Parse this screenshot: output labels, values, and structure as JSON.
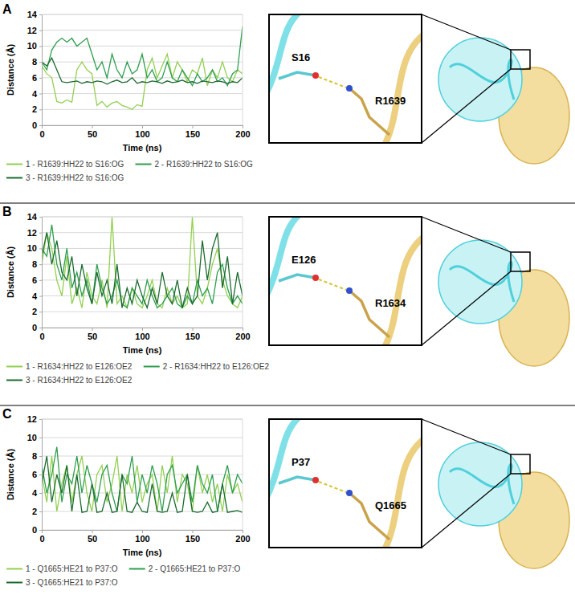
{
  "chart_data": [
    {
      "type": "line",
      "panel_label": "A",
      "annotations": [
        "S16",
        "R1639"
      ],
      "x_label": "Time (ns)",
      "y_label": "Distance (Å)",
      "x": [
        0,
        5,
        10,
        15,
        20,
        25,
        30,
        35,
        40,
        45,
        50,
        55,
        60,
        65,
        70,
        75,
        80,
        85,
        90,
        95,
        100,
        105,
        110,
        115,
        120,
        125,
        130,
        135,
        140,
        145,
        150,
        155,
        160,
        165,
        170,
        175,
        180,
        185,
        190,
        195,
        200
      ],
      "xlim": [
        0,
        200
      ],
      "xticks": [
        0,
        50,
        100,
        150,
        200
      ],
      "ylim": [
        0,
        14
      ],
      "yticks": [
        0,
        2,
        4,
        6,
        8,
        10,
        12,
        14
      ],
      "grid": true,
      "legend": "bottom",
      "series": [
        {
          "name": "1 - R1639:HH22 to S16:OG",
          "color": "#92d050",
          "values": [
            7.5,
            6.5,
            6,
            3,
            2.8,
            3.2,
            2.9,
            7,
            8,
            7,
            6.5,
            2.5,
            3,
            2.3,
            2.8,
            3,
            2.5,
            2.3,
            2,
            2.6,
            2.4,
            7,
            8.5,
            6,
            7.5,
            9,
            6,
            8,
            7,
            5.5,
            7,
            6.5,
            8.5,
            5,
            7,
            6,
            8,
            6,
            5.5,
            7,
            6.5
          ]
        },
        {
          "name": "2 - R1639:HH22 to S16:OG",
          "color": "#2e9e4f",
          "values": [
            8,
            7,
            9.5,
            10.5,
            11,
            10.5,
            11,
            10,
            10.5,
            11,
            9,
            7,
            8,
            6,
            9,
            7,
            6,
            8,
            6.5,
            7,
            9,
            6,
            7,
            5.5,
            6,
            8,
            6,
            5.5,
            7,
            6,
            5,
            6.5,
            5.5,
            6,
            7,
            5.5,
            6,
            5,
            6.5,
            7,
            12.5
          ]
        },
        {
          "name": "3 - R1639:HH22 to S16:OG",
          "color": "#1b6b2f",
          "values": [
            8,
            7.5,
            8.5,
            7,
            5.5,
            5.4,
            5.5,
            5.6,
            5.3,
            5.5,
            5.4,
            5.6,
            5.5,
            5.2,
            5.5,
            5.7,
            5.4,
            5.5,
            6,
            5.3,
            5.5,
            5.4,
            5.6,
            5.5,
            5.3,
            5.6,
            5.4,
            5.5,
            5.7,
            5.4,
            5.5,
            5.3,
            5.6,
            5.5,
            5.4,
            5.6,
            5.5,
            5.3,
            5.5,
            5.4,
            6
          ]
        }
      ]
    },
    {
      "type": "line",
      "panel_label": "B",
      "annotations": [
        "E126",
        "R1634"
      ],
      "x_label": "Time (ns)",
      "y_label": "Distance (Å)",
      "x": [
        0,
        5,
        10,
        15,
        20,
        25,
        30,
        35,
        40,
        45,
        50,
        55,
        60,
        65,
        70,
        75,
        80,
        85,
        90,
        95,
        100,
        105,
        110,
        115,
        120,
        125,
        130,
        135,
        140,
        145,
        150,
        155,
        160,
        165,
        170,
        175,
        180,
        185,
        190,
        195,
        200
      ],
      "xlim": [
        0,
        200
      ],
      "xticks": [
        0,
        50,
        100,
        150,
        200
      ],
      "ylim": [
        0,
        14
      ],
      "yticks": [
        0,
        2,
        4,
        6,
        8,
        10,
        12,
        14
      ],
      "grid": true,
      "legend": "bottom",
      "series": [
        {
          "name": "1 - R1634:HH22 to E126:OE2",
          "color": "#92d050",
          "values": [
            8,
            12,
            10,
            6,
            4,
            9,
            3,
            5,
            2.5,
            7,
            4,
            3,
            6,
            2.5,
            14,
            3,
            4,
            2.5,
            5,
            3,
            2.5,
            4,
            6,
            3,
            2.5,
            5,
            3,
            4,
            2.5,
            3,
            14,
            4,
            3,
            5,
            8,
            10,
            6,
            4,
            3,
            2.5,
            4
          ]
        },
        {
          "name": "2 - R1634:HH22 to E126:OE2",
          "color": "#2e9e4f",
          "values": [
            10,
            9,
            13,
            8,
            6,
            10,
            5,
            7,
            4,
            6,
            3,
            8,
            5,
            3,
            4,
            6,
            3,
            2.5,
            5,
            4,
            3,
            6,
            4,
            2.5,
            3,
            4,
            5,
            3,
            2.5,
            4,
            3,
            6,
            4,
            5,
            3,
            7,
            8,
            5,
            3,
            4,
            3
          ]
        },
        {
          "name": "3 - R1634:HH22 to E126:OE2",
          "color": "#1b6b2f",
          "values": [
            9,
            12,
            8,
            11,
            7,
            6,
            9,
            4,
            8,
            5,
            3,
            7,
            4,
            6,
            3,
            8,
            2.5,
            5,
            3,
            6,
            4,
            2.5,
            5,
            3,
            7,
            4,
            3,
            6,
            2.5,
            5,
            3,
            4,
            11,
            6,
            10,
            12,
            5,
            9,
            3,
            7,
            4
          ]
        }
      ]
    },
    {
      "type": "line",
      "panel_label": "C",
      "annotations": [
        "P37",
        "Q1665"
      ],
      "x_label": "Time (ns)",
      "y_label": "Distance (Å)",
      "x": [
        0,
        5,
        10,
        15,
        20,
        25,
        30,
        35,
        40,
        45,
        50,
        55,
        60,
        65,
        70,
        75,
        80,
        85,
        90,
        95,
        100,
        105,
        110,
        115,
        120,
        125,
        130,
        135,
        140,
        145,
        150,
        155,
        160,
        165,
        170,
        175,
        180,
        185,
        190,
        195,
        200
      ],
      "xlim": [
        0,
        200
      ],
      "xticks": [
        0,
        50,
        100,
        150,
        200
      ],
      "ylim": [
        0,
        12
      ],
      "yticks": [
        0,
        2,
        4,
        6,
        8,
        10,
        12
      ],
      "grid": true,
      "legend": "bottom",
      "series": [
        {
          "name": "1 - Q1665:HE21 to P37:O",
          "color": "#92d050",
          "values": [
            6,
            3,
            8,
            2,
            5,
            7,
            3,
            6,
            8,
            4,
            2,
            6,
            7,
            3,
            5,
            8,
            2,
            6,
            4,
            7,
            3,
            5,
            6,
            2,
            7,
            4,
            8,
            3,
            6,
            5,
            2,
            7,
            4,
            6,
            3,
            5,
            2,
            6,
            4,
            5,
            3
          ]
        },
        {
          "name": "2 - Q1665:HE21 to P37:O",
          "color": "#2e9e4f",
          "values": [
            7,
            4,
            6,
            9,
            3,
            6,
            5,
            8,
            4,
            7,
            5,
            3,
            6,
            7,
            4,
            2,
            6,
            5,
            8,
            3,
            6,
            4,
            7,
            5,
            2,
            6,
            7,
            4,
            5,
            6,
            3,
            7,
            5,
            4,
            6,
            2,
            5,
            7,
            4,
            6,
            5
          ]
        },
        {
          "name": "3 - Q1665:HE21 to P37:O",
          "color": "#1b6b2f",
          "values": [
            5,
            8,
            3,
            6,
            4,
            7,
            2,
            6,
            1.9,
            2,
            5,
            1.9,
            2,
            4,
            1.9,
            2,
            6,
            2,
            1.9,
            3,
            2,
            1.9,
            5,
            2,
            1.9,
            2,
            4,
            1.9,
            2,
            6,
            2,
            1.9,
            2,
            3,
            1.9,
            2,
            5,
            1.9,
            2,
            2.1,
            1.9
          ]
        }
      ]
    }
  ]
}
